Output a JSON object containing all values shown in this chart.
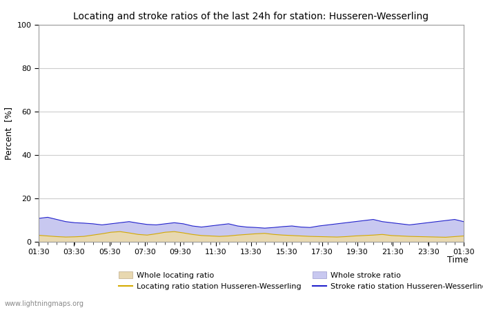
{
  "title": "Locating and stroke ratios of the last 24h for station: Husseren-Wesserling",
  "xlabel": "Time",
  "ylabel": "Percent  [%]",
  "ylim": [
    0,
    100
  ],
  "yticks": [
    0,
    20,
    40,
    60,
    80,
    100
  ],
  "x_labels": [
    "01:30",
    "03:30",
    "05:30",
    "07:30",
    "09:30",
    "11:30",
    "13:30",
    "15:30",
    "17:30",
    "19:30",
    "21:30",
    "23:30",
    "01:30"
  ],
  "background_color": "#ffffff",
  "plot_bg_color": "#ffffff",
  "grid_color": "#cccccc",
  "watermark": "www.lightningmaps.org",
  "whole_locating_fill_color": "#e8d8b0",
  "whole_stroke_fill_color": "#c8c8f0",
  "locating_line_color": "#d4aa00",
  "stroke_line_color": "#2222cc",
  "whole_locating_ratio": [
    3.1,
    2.8,
    2.5,
    2.3,
    2.4,
    2.6,
    3.2,
    3.8,
    4.5,
    4.8,
    4.2,
    3.5,
    3.2,
    3.8,
    4.5,
    4.8,
    4.2,
    3.5,
    3.0,
    2.8,
    2.6,
    2.8,
    3.2,
    3.5,
    3.8,
    4.0,
    3.5,
    3.2,
    3.0,
    2.8,
    2.6,
    2.5,
    2.4,
    2.3,
    2.5,
    2.8,
    3.0,
    3.2,
    3.5,
    3.0,
    2.8,
    2.6,
    2.5,
    2.4,
    2.3,
    2.2,
    2.5,
    2.8
  ],
  "whole_stroke_ratio": [
    11.0,
    11.5,
    10.5,
    9.5,
    9.0,
    8.8,
    8.5,
    8.0,
    8.5,
    9.0,
    9.5,
    8.8,
    8.2,
    8.0,
    8.5,
    9.0,
    8.5,
    7.5,
    7.0,
    7.5,
    8.0,
    8.5,
    7.5,
    7.0,
    6.8,
    6.5,
    6.8,
    7.2,
    7.5,
    7.0,
    6.8,
    7.5,
    8.0,
    8.5,
    9.0,
    9.5,
    10.0,
    10.5,
    9.5,
    9.0,
    8.5,
    8.0,
    8.5,
    9.0,
    9.5,
    10.0,
    10.5,
    9.5
  ],
  "locating_ratio_station": [
    3.0,
    2.7,
    2.4,
    2.2,
    2.3,
    2.5,
    3.1,
    3.7,
    4.4,
    4.7,
    4.1,
    3.4,
    3.1,
    3.7,
    4.4,
    4.7,
    4.1,
    3.4,
    2.9,
    2.7,
    2.5,
    2.7,
    3.1,
    3.4,
    3.7,
    3.9,
    3.4,
    3.1,
    2.9,
    2.7,
    2.5,
    2.4,
    2.3,
    2.2,
    2.4,
    2.7,
    2.9,
    3.1,
    3.4,
    2.9,
    2.7,
    2.5,
    2.4,
    2.3,
    2.2,
    2.1,
    2.4,
    2.7
  ],
  "stroke_ratio_station": [
    10.8,
    11.3,
    10.3,
    9.3,
    8.8,
    8.6,
    8.3,
    7.8,
    8.3,
    8.8,
    9.3,
    8.6,
    8.0,
    7.8,
    8.3,
    8.8,
    8.3,
    7.3,
    6.8,
    7.3,
    7.8,
    8.3,
    7.3,
    6.8,
    6.6,
    6.3,
    6.6,
    7.0,
    7.3,
    6.8,
    6.6,
    7.3,
    7.8,
    8.3,
    8.8,
    9.3,
    9.8,
    10.3,
    9.3,
    8.8,
    8.3,
    7.8,
    8.3,
    8.8,
    9.3,
    9.8,
    10.3,
    9.3
  ],
  "legend_labels": [
    "Whole locating ratio",
    "Locating ratio station Husseren-Wesserling",
    "Whole stroke ratio",
    "Stroke ratio station Husseren-Wesserling"
  ]
}
